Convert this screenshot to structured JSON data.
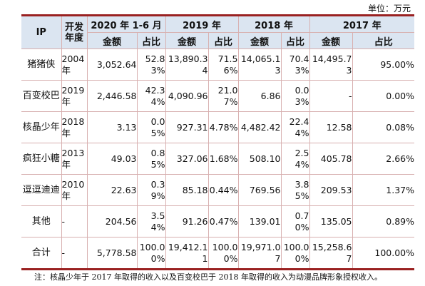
{
  "unit_label": "单位：万元",
  "headers": {
    "ip": "IP",
    "dev_year": "开发年度",
    "periods": [
      "2020 年 1-6 月",
      "2019 年",
      "2018 年",
      "2017 年"
    ],
    "amount": "金额",
    "ratio": "占比"
  },
  "rows": [
    {
      "ip": "猪猪侠",
      "year": "2004年",
      "vals": [
        "3,052.64",
        "52.83%",
        "13,890.34",
        "71.56%",
        "14,065.13",
        "70.43%",
        "14,495.73",
        "95.00%"
      ]
    },
    {
      "ip": "百变校巴",
      "year": "2019年",
      "vals": [
        "2,446.58",
        "42.34%",
        "4,090.96",
        "21.07%",
        "6.86",
        "0.03%",
        "-",
        "0.00%"
      ]
    },
    {
      "ip": "核晶少年",
      "year": "2018年",
      "vals": [
        "3.13",
        "0.05%",
        "927.31",
        "4.78%",
        "4,482.42",
        "22.44%",
        "12.58",
        "0.08%"
      ]
    },
    {
      "ip": "疯狂小糖",
      "year": "2013年",
      "vals": [
        "49.03",
        "0.85%",
        "327.06",
        "1.68%",
        "508.10",
        "2.54%",
        "405.78",
        "2.66%"
      ]
    },
    {
      "ip": "逗逗迪迪",
      "year": "2010年",
      "vals": [
        "22.63",
        "0.39%",
        "85.18",
        "0.44%",
        "769.56",
        "3.85%",
        "209.53",
        "1.37%"
      ]
    },
    {
      "ip": "其他",
      "year": "-",
      "vals": [
        "204.56",
        "3.54%",
        "91.26",
        "0.47%",
        "139.01",
        "0.70%",
        "135.05",
        "0.89%"
      ]
    },
    {
      "ip": "合计",
      "year": "-",
      "vals": [
        "5,778.58",
        "100.00%",
        "19,412.11",
        "100.00%",
        "19,971.07",
        "100.00%",
        "15,258.67",
        "100.00%"
      ]
    }
  ],
  "note": "注：核晶少年于 2017 年取得的收入以及百变校巴于 2018 年取得的收入为动漫品牌形象授权收入。"
}
